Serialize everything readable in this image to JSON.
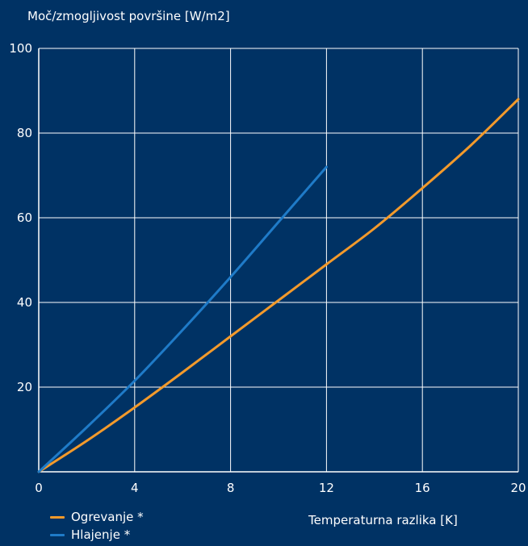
{
  "chart_data": {
    "type": "line",
    "ylabel": "Moč/zmogljivost površine [W/m2]",
    "xlabel": "Temperaturna razlika [K]",
    "xlim": [
      0,
      20
    ],
    "ylim": [
      0,
      100
    ],
    "x_ticks": [
      0,
      4,
      8,
      12,
      16,
      20
    ],
    "y_ticks": [
      20,
      40,
      60,
      80,
      100
    ],
    "grid": true,
    "legend_position": "bottom-left",
    "background_color": "#003264",
    "series": [
      {
        "name": "Ogrevanje *",
        "color": "#F39A2B",
        "points": [
          [
            0,
            0
          ],
          [
            2,
            7.3
          ],
          [
            4,
            15.2
          ],
          [
            6,
            23.5
          ],
          [
            8,
            32
          ],
          [
            10,
            40.5
          ],
          [
            12,
            49
          ],
          [
            14,
            57.5
          ],
          [
            16,
            67
          ],
          [
            18,
            77
          ],
          [
            20,
            88
          ]
        ]
      },
      {
        "name": "Hlajenje *",
        "color": "#1F7BC8",
        "points": [
          [
            0,
            0
          ],
          [
            2,
            10.5
          ],
          [
            4,
            21.5
          ],
          [
            6,
            33.5
          ],
          [
            8,
            46
          ],
          [
            10,
            59
          ],
          [
            12,
            72
          ]
        ]
      }
    ]
  }
}
